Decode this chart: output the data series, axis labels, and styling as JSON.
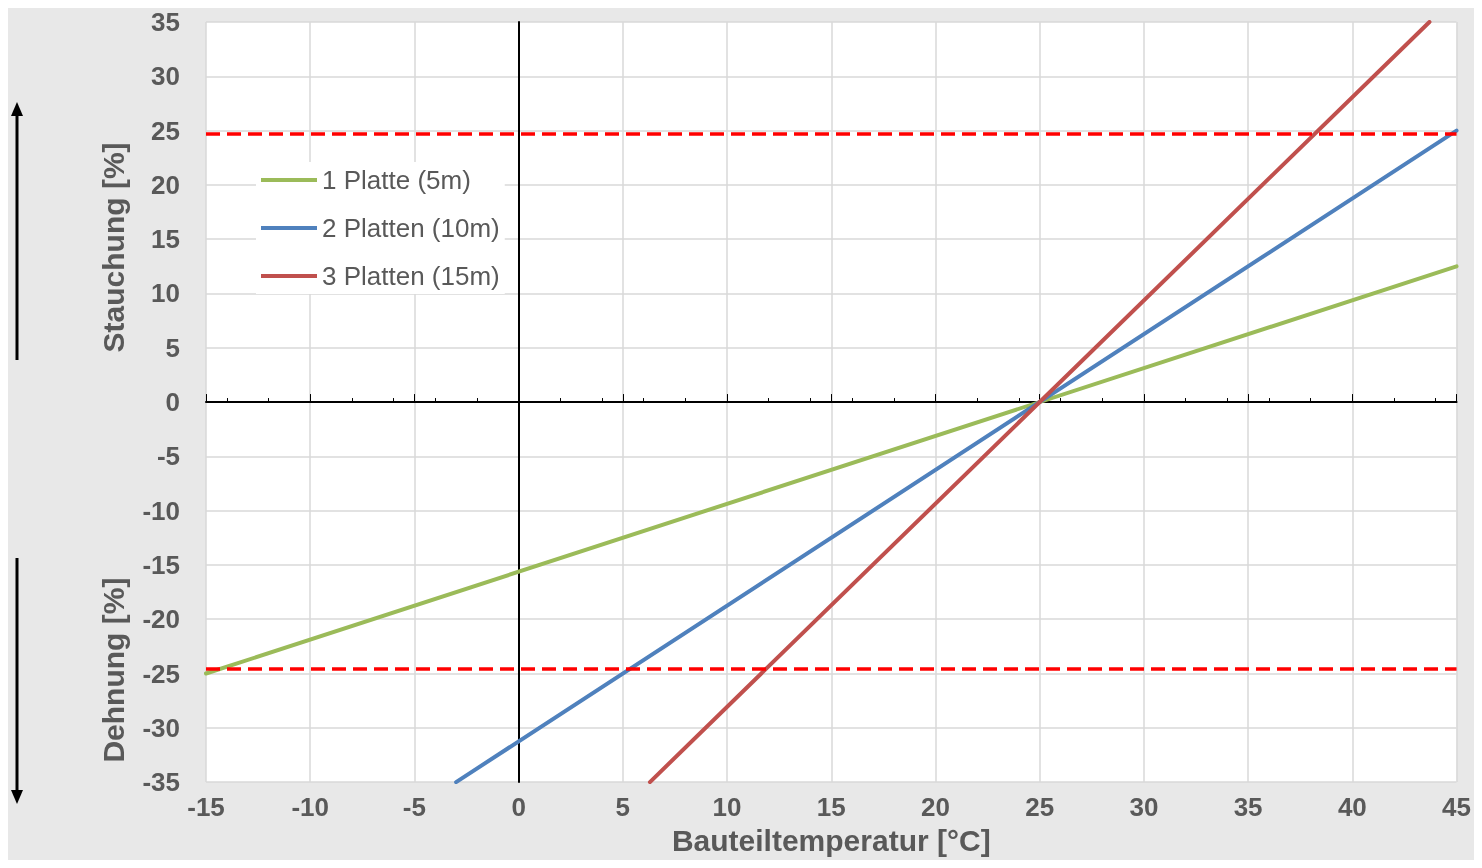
{
  "chart_data": {
    "type": "line",
    "xlabel": "Bauteiltemperatur [°C]",
    "ylabel": "Stauchung [%]",
    "annotations": [
      "Dehnung [%]"
    ],
    "xlim": [
      -15,
      45
    ],
    "xticks": [
      -15,
      -10,
      -5,
      0,
      5,
      10,
      15,
      20,
      25,
      30,
      35,
      40,
      45
    ],
    "ylim": [
      -35,
      35
    ],
    "yticks": [
      -35,
      -30,
      -25,
      -20,
      -15,
      -10,
      -5,
      0,
      5,
      10,
      15,
      20,
      25,
      30,
      35
    ],
    "series": [
      {
        "name": "1 Platte (5m)",
        "color": "#9bbb59",
        "x": [
          -15,
          45
        ],
        "values": [
          -25,
          12.5
        ]
      },
      {
        "name": "2 Platten (10m)",
        "color": "#4f81bd",
        "x": [
          -3,
          45
        ],
        "values": [
          -35,
          25
        ]
      },
      {
        "name": "3 Platten (15m)",
        "color": "#c0504d",
        "x": [
          6.3,
          43.7
        ],
        "values": [
          -35,
          35
        ]
      }
    ],
    "ref_lines": [
      {
        "axis": "y",
        "value": 24.7,
        "color": "#ff0000",
        "line_style": "dashed"
      },
      {
        "axis": "y",
        "value": -24.6,
        "color": "#ff0000",
        "line_style": "dashed"
      }
    ],
    "grid": true,
    "legend": "top left",
    "marker": "none",
    "line_style": "solid"
  }
}
